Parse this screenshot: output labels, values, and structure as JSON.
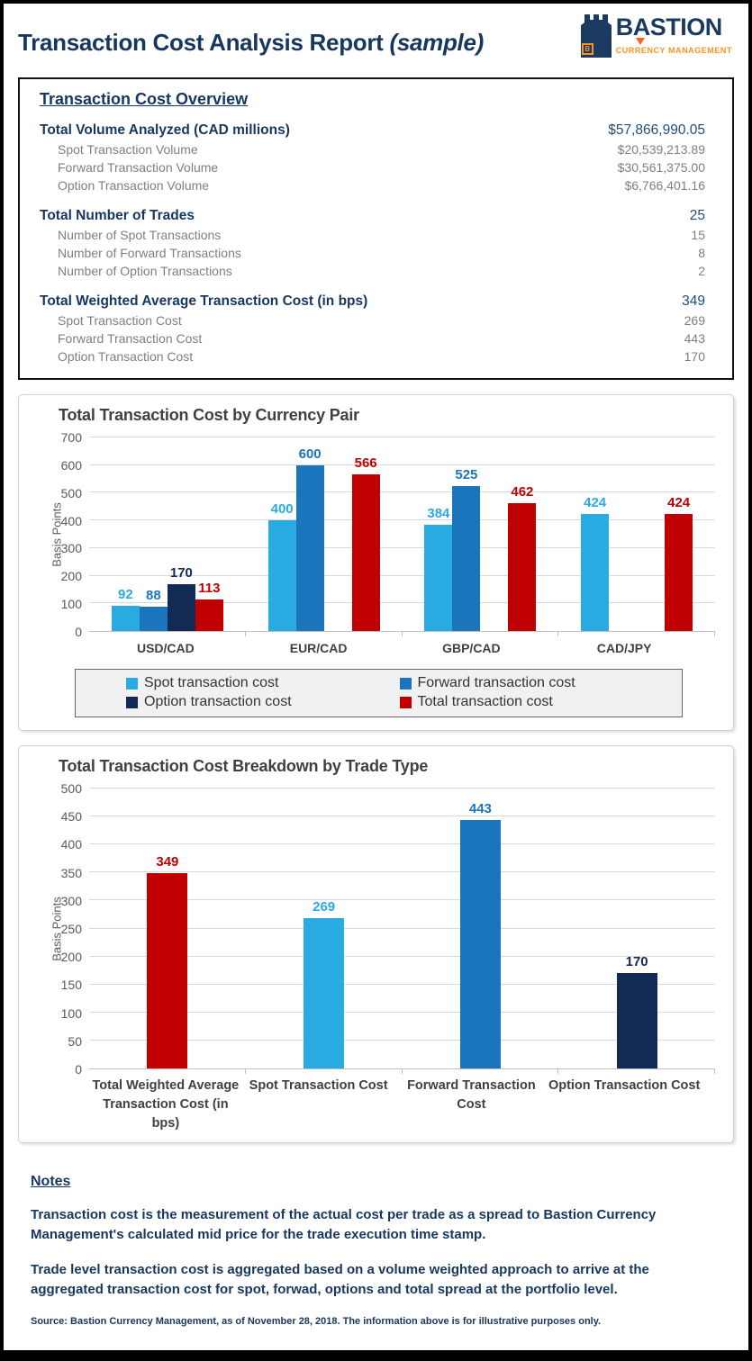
{
  "page": {
    "title_prefix": "Transaction Cost Analysis Report ",
    "title_italic": "(sample)"
  },
  "logo": {
    "name": "BASTION",
    "subtitle": "CURRENCY MANAGEMENT",
    "letter": "B",
    "navy": "#1B3A5F",
    "orange": "#F7941E"
  },
  "overview": {
    "heading": "Transaction Cost Overview",
    "groups": [
      {
        "label": "Total Volume Analyzed (CAD millions)",
        "value": "$57,866,990.05",
        "items": [
          {
            "label": "Spot Transaction Volume",
            "value": "$20,539,213.89"
          },
          {
            "label": "Forward Transaction Volume",
            "value": "$30,561,375.00"
          },
          {
            "label": "Option Transaction Volume",
            "value": "$6,766,401.16"
          }
        ]
      },
      {
        "label": "Total Number of Trades",
        "value": "25",
        "items": [
          {
            "label": "Number of Spot Transactions",
            "value": "15"
          },
          {
            "label": "Number of Forward Transactions",
            "value": "8"
          },
          {
            "label": "Number of Option Transactions",
            "value": "2"
          }
        ]
      },
      {
        "label": "Total Weighted Average Transaction Cost (in bps)",
        "value": "349",
        "items": [
          {
            "label": "Spot Transaction Cost",
            "value": "269"
          },
          {
            "label": "Forward Transaction Cost",
            "value": "443"
          },
          {
            "label": "Option Transaction Cost",
            "value": "170"
          }
        ]
      }
    ]
  },
  "chart_data": [
    {
      "type": "bar",
      "title": "Total Transaction Cost by Currency Pair",
      "xlabel": "",
      "ylabel": "Basis Points",
      "ylim": [
        0,
        700
      ],
      "ytick_step": 100,
      "grid": true,
      "legend_position": "bottom",
      "categories": [
        "USD/CAD",
        "EUR/CAD",
        "GBP/CAD",
        "CAD/JPY"
      ],
      "series": [
        {
          "name": "Spot transaction cost",
          "color": "#29ABE2",
          "values": [
            92,
            400,
            384,
            424
          ]
        },
        {
          "name": "Forward transaction cost",
          "color": "#1B75BC",
          "values": [
            88,
            600,
            525,
            null
          ]
        },
        {
          "name": "Option transaction cost",
          "color": "#132A54",
          "values": [
            170,
            null,
            null,
            null
          ]
        },
        {
          "name": "Total transaction cost",
          "color": "#C00000",
          "values": [
            113,
            566,
            462,
            424
          ]
        }
      ]
    },
    {
      "type": "bar",
      "title": "Total Transaction Cost Breakdown by Trade Type",
      "xlabel": "",
      "ylabel": "Basis Points",
      "ylim": [
        0,
        500
      ],
      "ytick_step": 50,
      "grid": true,
      "legend_position": "none",
      "categories": [
        "Total Weighted Average Transaction Cost (in bps)",
        "Spot Transaction Cost",
        "Forward Transaction Cost",
        "Option Transaction Cost"
      ],
      "values": [
        349,
        269,
        443,
        170
      ],
      "colors": [
        "#C00000",
        "#29ABE2",
        "#1B75BC",
        "#132A54"
      ]
    }
  ],
  "notes": {
    "heading": "Notes",
    "paragraphs": [
      "Transaction cost is the measurement of the actual cost per trade as a spread to Bastion Currency Management's calculated mid price for the trade execution time stamp.",
      "Trade level transaction cost is aggregated based on a volume weighted approach to arrive at the aggregated transaction cost for spot, forwad, options and total spread at the portfolio level."
    ],
    "source": "Source: Bastion Currency Management, as of November 28, 2018. The information above is for illustrative purposes only."
  }
}
